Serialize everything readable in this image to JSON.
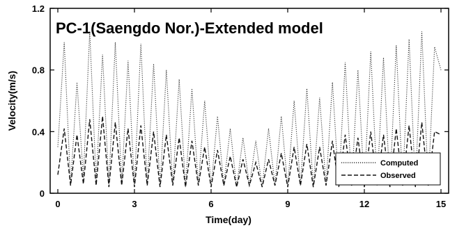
{
  "chart_data": {
    "type": "line",
    "title": "PC-1(Saengdo Nor.)-Extended model",
    "xlabel": "Time(day)",
    "ylabel": "Velocity(m/s)",
    "xlim": [
      -0.3,
      15.3
    ],
    "ylim": [
      0,
      1.2
    ],
    "xticks": [
      0,
      3,
      6,
      9,
      12,
      15
    ],
    "yticks": [
      0,
      0.4,
      0.8,
      1.2
    ],
    "xtick_labels": [
      "0",
      "3",
      "6",
      "9",
      "12",
      "15"
    ],
    "ytick_labels": [
      "0",
      "0.4",
      "0.8",
      "1.2"
    ],
    "grid": false,
    "legend_position": "bottom-right",
    "series": [
      {
        "name": "Computed",
        "style": "dotted",
        "color": "#333333",
        "x": [
          0.0,
          0.25,
          0.5,
          0.75,
          1.0,
          1.25,
          1.5,
          1.75,
          2.0,
          2.25,
          2.5,
          2.75,
          3.0,
          3.25,
          3.5,
          3.75,
          4.0,
          4.25,
          4.5,
          4.75,
          5.0,
          5.25,
          5.5,
          5.75,
          6.0,
          6.25,
          6.5,
          6.75,
          7.0,
          7.25,
          7.5,
          7.75,
          8.0,
          8.25,
          8.5,
          8.75,
          9.0,
          9.25,
          9.5,
          9.75,
          10.0,
          10.25,
          10.5,
          10.75,
          11.0,
          11.25,
          11.5,
          11.75,
          12.0,
          12.25,
          12.5,
          12.75,
          13.0,
          13.25,
          13.5,
          13.75,
          14.0,
          14.25,
          14.5,
          14.75,
          15.0
        ],
        "y": [
          0.3,
          0.98,
          0.05,
          0.72,
          0.1,
          1.05,
          0.08,
          0.9,
          0.05,
          0.98,
          0.06,
          0.86,
          0.05,
          0.97,
          0.05,
          0.84,
          0.04,
          0.8,
          0.05,
          0.74,
          0.04,
          0.68,
          0.05,
          0.6,
          0.04,
          0.5,
          0.05,
          0.42,
          0.04,
          0.36,
          0.05,
          0.34,
          0.04,
          0.42,
          0.05,
          0.5,
          0.04,
          0.6,
          0.05,
          0.68,
          0.04,
          0.62,
          0.05,
          0.72,
          0.04,
          0.85,
          0.05,
          0.8,
          0.04,
          0.92,
          0.05,
          0.88,
          0.04,
          0.96,
          0.05,
          1.0,
          0.04,
          1.05,
          0.05,
          0.95,
          0.8
        ]
      },
      {
        "name": "Observed",
        "style": "dashed",
        "color": "#111111",
        "x": [
          0.0,
          0.25,
          0.5,
          0.75,
          1.0,
          1.25,
          1.5,
          1.75,
          2.0,
          2.25,
          2.5,
          2.75,
          3.0,
          3.25,
          3.5,
          3.75,
          4.0,
          4.25,
          4.5,
          4.75,
          5.0,
          5.25,
          5.5,
          5.75,
          6.0,
          6.25,
          6.5,
          6.75,
          7.0,
          7.25,
          7.5,
          7.75,
          8.0,
          8.25,
          8.5,
          8.75,
          9.0,
          9.25,
          9.5,
          9.75,
          10.0,
          10.25,
          10.5,
          10.75,
          11.0,
          11.25,
          11.5,
          11.75,
          12.0,
          12.25,
          12.5,
          12.75,
          13.0,
          13.25,
          13.5,
          13.75,
          14.0,
          14.25,
          14.5,
          14.75,
          15.0
        ],
        "y": [
          0.12,
          0.42,
          0.05,
          0.38,
          0.06,
          0.48,
          0.05,
          0.5,
          0.04,
          0.46,
          0.05,
          0.42,
          0.04,
          0.44,
          0.05,
          0.4,
          0.04,
          0.38,
          0.05,
          0.36,
          0.04,
          0.34,
          0.05,
          0.3,
          0.04,
          0.28,
          0.05,
          0.24,
          0.04,
          0.22,
          0.05,
          0.2,
          0.04,
          0.22,
          0.05,
          0.26,
          0.04,
          0.3,
          0.05,
          0.32,
          0.04,
          0.3,
          0.05,
          0.34,
          0.04,
          0.38,
          0.05,
          0.36,
          0.04,
          0.4,
          0.05,
          0.38,
          0.04,
          0.42,
          0.05,
          0.44,
          0.04,
          0.46,
          0.05,
          0.4,
          0.38
        ]
      }
    ]
  }
}
